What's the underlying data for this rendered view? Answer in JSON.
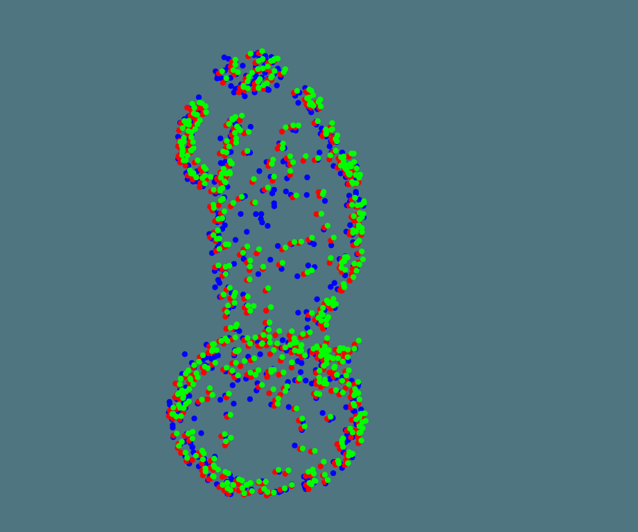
{
  "scene": {
    "description_name": "point-cloud-render",
    "background_color": "#4E7580",
    "colors": {
      "red": "#FF0000",
      "green": "#00FF00",
      "blue": "#0000FF"
    },
    "point_layers": [
      "blue",
      "red",
      "green"
    ]
  }
}
